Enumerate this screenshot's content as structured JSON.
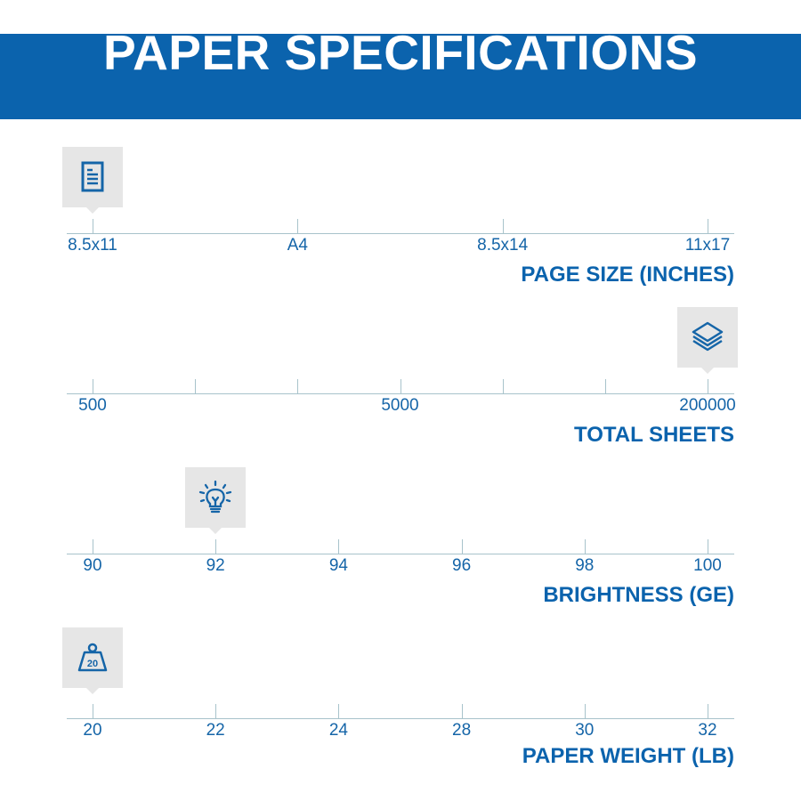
{
  "title": "PAPER SPECIFICATIONS",
  "colors": {
    "brand_blue": "#0b63ad",
    "axis": "#a8c3cb",
    "icon_bg": "#e6e6e6"
  },
  "specs": [
    {
      "name": "PAGE SIZE (INCHES)",
      "icon": "document-icon",
      "ticks": [
        "8.5x11",
        "A4",
        "8.5x14",
        "11x17"
      ],
      "selected": "8.5x11"
    },
    {
      "name": "TOTAL SHEETS",
      "icon": "paper-stack-icon",
      "ticks": [
        "500",
        "",
        "",
        "5000",
        "",
        "",
        "200000"
      ],
      "selected": "200000"
    },
    {
      "name": "BRIGHTNESS (GE)",
      "icon": "lightbulb-icon",
      "ticks": [
        "90",
        "92",
        "94",
        "96",
        "98",
        "100"
      ],
      "selected": "92"
    },
    {
      "name": "PAPER WEIGHT (LB)",
      "icon": "weight-icon",
      "icon_text": "20",
      "ticks": [
        "20",
        "22",
        "24",
        "28",
        "30",
        "32"
      ],
      "selected": "20"
    }
  ]
}
